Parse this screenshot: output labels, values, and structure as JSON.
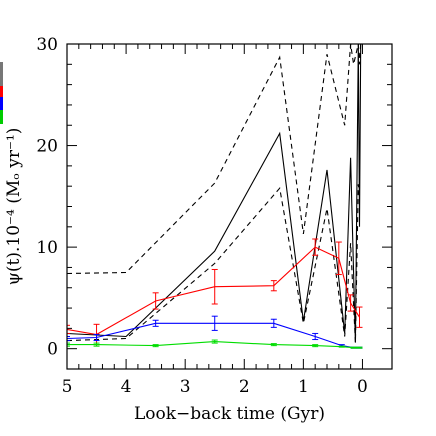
{
  "chart_data": {
    "type": "line",
    "xlabel": "Look−back time (Gyr)",
    "ylabel": "ψ(t).10⁻⁴ (Mₒ yr⁻¹)",
    "xlim": [
      5.0,
      -0.5
    ],
    "ylim": [
      -2,
      30
    ],
    "xticks": [
      "5",
      "4",
      "3",
      "2",
      "1",
      "0"
    ],
    "yticks": [
      "0",
      "10",
      "20",
      "30"
    ],
    "grid": false,
    "legend": "none",
    "colors": {
      "total": "#000000",
      "total_bounds": "#000000",
      "red": "#ff0000",
      "blue": "#0000ff",
      "green": "#00dd00",
      "side_strip": [
        "#777777",
        "#ff0000",
        "#0000ff",
        "#00cc00"
      ]
    },
    "series": [
      {
        "key": "upper",
        "color": "#000000",
        "dash": "5,4",
        "x": [
          5.0,
          4.0,
          2.5,
          1.4,
          1.0,
          0.6,
          0.3,
          0.2,
          0.15,
          0.07,
          0.05,
          0.03
        ],
        "y": [
          7.4,
          7.5,
          16.3,
          28.7,
          11.3,
          29.0,
          22.0,
          30.0,
          28.0,
          30.0,
          28.0,
          30.0
        ]
      },
      {
        "key": "total",
        "color": "#000000",
        "dash": "",
        "x": [
          5.0,
          4.0,
          2.5,
          1.4,
          1.0,
          0.6,
          0.3,
          0.2,
          0.12,
          0.07,
          0.05,
          0.03
        ],
        "y": [
          1.5,
          1.2,
          9.6,
          21.2,
          2.7,
          17.6,
          1.5,
          18.8,
          0.6,
          30.0,
          12.0,
          30.0
        ]
      },
      {
        "key": "lower",
        "color": "#000000",
        "dash": "5,4",
        "x": [
          5.0,
          4.0,
          2.5,
          1.4,
          1.0,
          0.6,
          0.3,
          0.2,
          0.12,
          0.07,
          0.05
        ],
        "y": [
          0.8,
          1.0,
          8.4,
          15.8,
          2.5,
          13.8,
          1.2,
          10.4,
          0.6,
          16.2,
          15.0
        ]
      },
      {
        "key": "red",
        "color": "#ff0000",
        "dash": "",
        "x": [
          5.0,
          4.5,
          3.5,
          2.5,
          1.5,
          0.8,
          0.4,
          0.2,
          0.05
        ],
        "y": [
          1.9,
          1.4,
          4.7,
          6.1,
          6.2,
          10.0,
          8.9,
          4.5,
          3.1
        ],
        "err": [
          0.4,
          1.0,
          0.8,
          1.7,
          0.5,
          0.8,
          1.6,
          0.8,
          1.0
        ]
      },
      {
        "key": "blue",
        "color": "#0000ff",
        "dash": "",
        "x": [
          5.0,
          4.5,
          3.5,
          2.5,
          1.5,
          0.8,
          0.35,
          0.15,
          0.05
        ],
        "y": [
          1.0,
          1.1,
          2.5,
          2.5,
          2.5,
          1.2,
          0.3,
          0.1,
          0.1
        ],
        "err": [
          0.2,
          0.3,
          0.3,
          0.7,
          0.4,
          0.3,
          0.1,
          0.05,
          0.05
        ]
      },
      {
        "key": "green",
        "color": "#00dd00",
        "dash": "",
        "x": [
          5.0,
          4.5,
          3.5,
          2.5,
          1.5,
          0.8,
          0.35,
          0.15,
          0.05
        ],
        "y": [
          0.4,
          0.4,
          0.3,
          0.7,
          0.4,
          0.3,
          0.2,
          0.1,
          0.1
        ],
        "err": [
          0.15,
          0.15,
          0.1,
          0.15,
          0.1,
          0.1,
          0.05,
          0.05,
          0.05
        ]
      }
    ]
  }
}
